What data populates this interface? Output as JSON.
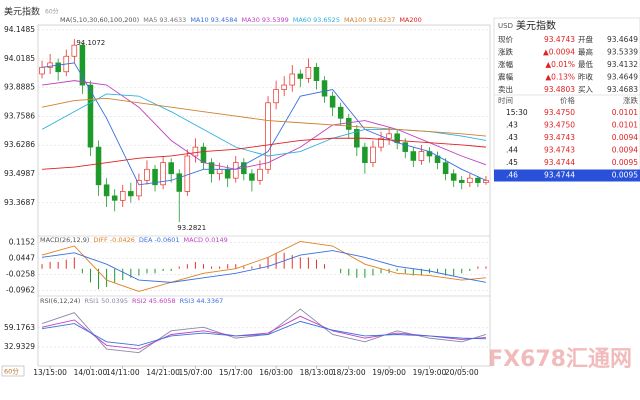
{
  "chart_data": {
    "type": "candlestick",
    "title": "美元指数",
    "period": "60分",
    "ylim": [
      93.219,
      94.171
    ],
    "yticks": [
      94.1485,
      94.0185,
      93.8885,
      93.7586,
      93.6286,
      93.4987,
      93.3687
    ],
    "xlim": [
      0.5,
      56.5
    ],
    "xticks": [
      {
        "value": 2,
        "label": "13/15:00"
      },
      {
        "value": 7,
        "label": "14/01:00"
      },
      {
        "value": 11,
        "label": "14/11:00"
      },
      {
        "value": 16,
        "label": "14/21:00"
      },
      {
        "value": 20,
        "label": "15/07:00"
      },
      {
        "value": 25,
        "label": "15/17:00"
      },
      {
        "value": 30,
        "label": "16/03:00"
      },
      {
        "value": 35,
        "label": "18/13:00"
      },
      {
        "value": 39,
        "label": "18/23:00"
      },
      {
        "value": 44,
        "label": "19/09:00"
      },
      {
        "value": 49,
        "label": "19/19:00"
      },
      {
        "value": 53,
        "label": "20/05:00"
      }
    ],
    "up_color": "#e8302a",
    "down_color": "#1e9a2a",
    "candles": {
      "open": [
        93.95,
        93.98,
        94.0,
        93.96,
        94.03,
        94.08,
        93.9,
        93.62,
        93.45,
        93.4,
        93.38,
        93.42,
        93.4,
        93.47,
        93.52,
        93.45,
        93.55,
        93.5,
        93.42,
        93.58,
        93.62,
        93.55,
        93.5,
        93.52,
        93.48,
        93.55,
        93.5,
        93.47,
        93.52,
        93.82,
        93.88,
        93.9,
        93.95,
        93.93,
        93.98,
        93.92,
        93.85,
        93.8,
        93.75,
        93.7,
        93.62,
        93.55,
        93.62,
        93.66,
        93.68,
        93.64,
        93.6,
        93.56,
        93.6,
        93.58,
        93.55,
        93.5,
        93.47,
        93.46,
        93.48,
        93.46
      ],
      "high": [
        94.01,
        94.04,
        94.02,
        94.06,
        94.1072,
        94.09,
        93.92,
        93.65,
        93.48,
        93.43,
        93.45,
        93.46,
        93.5,
        93.56,
        93.54,
        93.58,
        93.57,
        93.52,
        93.61,
        93.66,
        93.64,
        93.57,
        93.55,
        93.54,
        93.58,
        93.57,
        93.52,
        93.56,
        93.85,
        93.92,
        93.94,
        93.99,
        93.97,
        94.02,
        94.0,
        93.94,
        93.87,
        93.82,
        93.77,
        93.72,
        93.64,
        93.65,
        93.69,
        93.71,
        93.7,
        93.66,
        93.62,
        93.63,
        93.62,
        93.6,
        93.57,
        93.52,
        93.49,
        93.5,
        93.49,
        93.49
      ],
      "low": [
        93.93,
        93.95,
        93.92,
        93.94,
        94.0,
        93.86,
        93.58,
        93.4,
        93.35,
        93.33,
        93.35,
        93.37,
        93.38,
        93.45,
        93.42,
        93.43,
        93.46,
        93.2821,
        93.4,
        93.55,
        93.52,
        93.46,
        93.47,
        93.44,
        93.46,
        93.47,
        93.42,
        93.45,
        93.5,
        93.79,
        93.85,
        93.87,
        93.89,
        93.91,
        93.88,
        93.82,
        93.76,
        93.72,
        93.66,
        93.58,
        93.5,
        93.53,
        93.6,
        93.63,
        93.61,
        93.57,
        93.53,
        93.54,
        93.55,
        93.52,
        93.47,
        93.44,
        93.43,
        93.44,
        93.44,
        93.45
      ],
      "close": [
        93.98,
        94.0,
        93.96,
        94.03,
        94.08,
        93.9,
        93.62,
        93.45,
        93.4,
        93.38,
        93.42,
        93.4,
        93.47,
        93.52,
        93.45,
        93.55,
        93.5,
        93.42,
        93.58,
        93.62,
        93.55,
        93.5,
        93.52,
        93.48,
        93.55,
        93.5,
        93.47,
        93.52,
        93.82,
        93.88,
        93.9,
        93.95,
        93.93,
        93.98,
        93.92,
        93.85,
        93.8,
        93.75,
        93.7,
        93.62,
        93.55,
        93.62,
        93.66,
        93.68,
        93.64,
        93.6,
        93.56,
        93.6,
        93.58,
        93.55,
        93.5,
        93.47,
        93.46,
        93.48,
        93.46,
        93.47
      ]
    },
    "annotations": {
      "high": "94.1072",
      "low": "93.2821"
    },
    "ma": {
      "label": "MA(5,10,30,60,100,200)",
      "x": [
        1,
        5,
        9,
        13,
        17,
        21,
        25,
        29,
        33,
        37,
        41,
        45,
        49,
        53,
        56
      ],
      "series": [
        {
          "name": "MA5",
          "value": "93.4633",
          "color": "#777777"
        },
        {
          "name": "MA10",
          "value": "93.4584",
          "color": "#3a6fe0",
          "values": [
            93.98,
            94.0,
            93.75,
            93.45,
            93.47,
            93.52,
            93.52,
            93.6,
            93.85,
            93.88,
            93.7,
            93.64,
            93.6,
            93.52,
            93.47
          ]
        },
        {
          "name": "MA30",
          "value": "93.5399",
          "color": "#c040c0",
          "values": [
            93.9,
            93.92,
            93.9,
            93.8,
            93.65,
            93.55,
            93.52,
            93.55,
            93.62,
            93.72,
            93.74,
            93.7,
            93.64,
            93.58,
            93.54
          ]
        },
        {
          "name": "MA60",
          "value": "93.6525",
          "color": "#30b0e0",
          "values": [
            93.7,
            93.78,
            93.86,
            93.85,
            93.78,
            93.7,
            93.62,
            93.58,
            93.6,
            93.66,
            93.7,
            93.7,
            93.69,
            93.67,
            93.65
          ]
        },
        {
          "name": "MA100",
          "value": "93.6237",
          "color": "#d08030",
          "values": [
            93.8,
            93.83,
            93.84,
            93.82,
            93.8,
            93.78,
            93.76,
            93.74,
            93.73,
            93.72,
            93.71,
            93.7,
            93.69,
            93.68,
            93.67
          ]
        },
        {
          "name": "MA200",
          "color": "#e02020",
          "values": [
            93.52,
            93.53,
            93.55,
            93.57,
            93.58,
            93.6,
            93.61,
            93.63,
            93.65,
            93.66,
            93.66,
            93.65,
            93.64,
            93.63,
            93.62
          ]
        }
      ]
    },
    "macd": {
      "label": "MACD(26,12,9)",
      "ylim": [
        -0.12,
        0.144
      ],
      "yticks": [
        0.1152,
        0.0447,
        -0.0258,
        -0.0962
      ],
      "hist": [
        0.02,
        0.03,
        0.03,
        0.04,
        0.05,
        -0.02,
        -0.06,
        -0.09,
        -0.08,
        -0.06,
        -0.05,
        -0.04,
        -0.03,
        -0.02,
        -0.02,
        -0.01,
        -0.01,
        0.01,
        0.02,
        0.03,
        0.02,
        0.01,
        0.01,
        0.02,
        0.02,
        0.01,
        0.01,
        0.02,
        0.05,
        0.07,
        0.07,
        0.06,
        0.05,
        0.05,
        0.04,
        0.02,
        0.0,
        -0.02,
        -0.03,
        -0.04,
        -0.04,
        -0.03,
        -0.02,
        -0.02,
        -0.01,
        -0.02,
        -0.03,
        -0.03,
        -0.02,
        -0.02,
        -0.03,
        -0.03,
        -0.02,
        -0.01,
        0.01,
        0.01
      ],
      "series": [
        {
          "name": "DIFF",
          "value": "-0.0426",
          "color": "#e08020",
          "values": [
            0.06,
            0.1,
            -0.05,
            -0.1,
            -0.06,
            -0.02,
            0.0,
            0.05,
            0.12,
            0.1,
            0.02,
            -0.02,
            -0.03,
            -0.05,
            -0.04
          ]
        },
        {
          "name": "DEA",
          "value": "-0.0601",
          "color": "#3a6fe0",
          "values": [
            0.05,
            0.07,
            0.02,
            -0.05,
            -0.06,
            -0.04,
            -0.02,
            0.01,
            0.06,
            0.08,
            0.05,
            0.01,
            -0.01,
            -0.04,
            -0.06
          ]
        },
        {
          "name": "MACD",
          "value": "0.0149",
          "color": "#c040c0"
        }
      ]
    },
    "rsi": {
      "label": "RSI(6,12,24)",
      "ylim": [
        6.7,
        102.9
      ],
      "yticks": [
        59.1763,
        32.9329
      ],
      "series": [
        {
          "name": "RSI1",
          "value": "50.0395",
          "color": "#8888aa",
          "values": [
            65,
            80,
            30,
            25,
            55,
            60,
            45,
            50,
            85,
            50,
            40,
            55,
            45,
            40,
            50
          ]
        },
        {
          "name": "RSI2",
          "value": "45.6058",
          "color": "#c040c0",
          "values": [
            60,
            70,
            35,
            30,
            50,
            55,
            48,
            52,
            75,
            55,
            45,
            52,
            48,
            43,
            46
          ]
        },
        {
          "name": "RSI3",
          "value": "44.3367",
          "color": "#3a6fe0",
          "values": [
            58,
            65,
            40,
            35,
            48,
            52,
            48,
            50,
            68,
            56,
            48,
            50,
            48,
            45,
            44
          ]
        }
      ]
    },
    "watermark": "FX678汇通网"
  },
  "quote": {
    "code": "USD",
    "name": "美元指数",
    "rows": [
      [
        "现价",
        "93.4743",
        "开盘",
        "93.4649"
      ],
      [
        "涨跌",
        "▲0.0094",
        "最高",
        "93.5339"
      ],
      [
        "涨幅",
        "▲0.01%",
        "最低",
        "93.4132"
      ],
      [
        "震幅",
        "▲0.13%",
        "昨收",
        "93.4649"
      ],
      [
        "卖出",
        "93.4803",
        "买入",
        "93.4683"
      ]
    ]
  },
  "ticks": {
    "header": [
      "时间",
      "价格",
      "涨跌"
    ],
    "rows": [
      [
        "15:30",
        "93.4750",
        "0.0101"
      ],
      [
        ".43",
        "93.4750",
        "0.0101"
      ],
      [
        ".43",
        "93.4743",
        "0.0094"
      ],
      [
        ".44",
        "93.4743",
        "0.0094"
      ],
      [
        ".45",
        "93.4744",
        "0.0095"
      ],
      [
        ".46",
        "93.4744",
        "0.0095"
      ]
    ]
  }
}
